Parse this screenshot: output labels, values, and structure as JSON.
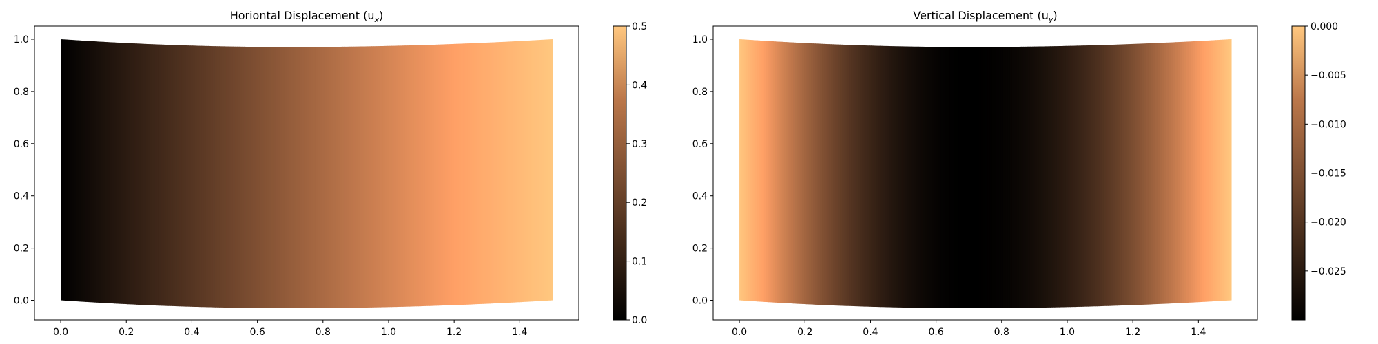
{
  "chart_data": [
    {
      "type": "heatmap",
      "title": "Horiontal Displacement (u",
      "title_sub": "x",
      "title_close": ")",
      "field": "horizontal",
      "colormap": "copper",
      "xlim": [
        -0.08,
        1.58
      ],
      "ylim": [
        -0.075,
        1.05
      ],
      "x_ticks": [
        "0.0",
        "0.2",
        "0.4",
        "0.6",
        "0.8",
        "1.0",
        "1.2",
        "1.4"
      ],
      "y_ticks": [
        "0.0",
        "0.2",
        "0.4",
        "0.6",
        "0.8",
        "1.0"
      ],
      "colorbar": {
        "min": 0.0,
        "max": 0.5,
        "ticks": [
          "0.0",
          "0.1",
          "0.2",
          "0.3",
          "0.4",
          "0.5"
        ]
      },
      "domain": {
        "x": [
          0.0,
          1.5
        ],
        "y": [
          0.0,
          1.0
        ],
        "max_sag": 0.03,
        "sag_at_x": 0.7
      }
    },
    {
      "type": "heatmap",
      "title": "Vertical Displacement (u",
      "title_sub": "y",
      "title_close": ")",
      "field": "vertical",
      "colormap": "copper",
      "xlim": [
        -0.08,
        1.58
      ],
      "ylim": [
        -0.075,
        1.05
      ],
      "x_ticks": [
        "0.0",
        "0.2",
        "0.4",
        "0.6",
        "0.8",
        "1.0",
        "1.2",
        "1.4"
      ],
      "y_ticks": [
        "0.0",
        "0.2",
        "0.4",
        "0.6",
        "0.8",
        "1.0"
      ],
      "colorbar": {
        "min": -0.03,
        "max": 0.0,
        "ticks": [
          "0.000",
          "−0.005",
          "−0.010",
          "−0.015",
          "−0.020",
          "−0.025"
        ]
      },
      "domain": {
        "x": [
          0.0,
          1.5
        ],
        "y": [
          0.0,
          1.0
        ],
        "max_sag": 0.03,
        "sag_at_x": 0.7
      }
    }
  ]
}
